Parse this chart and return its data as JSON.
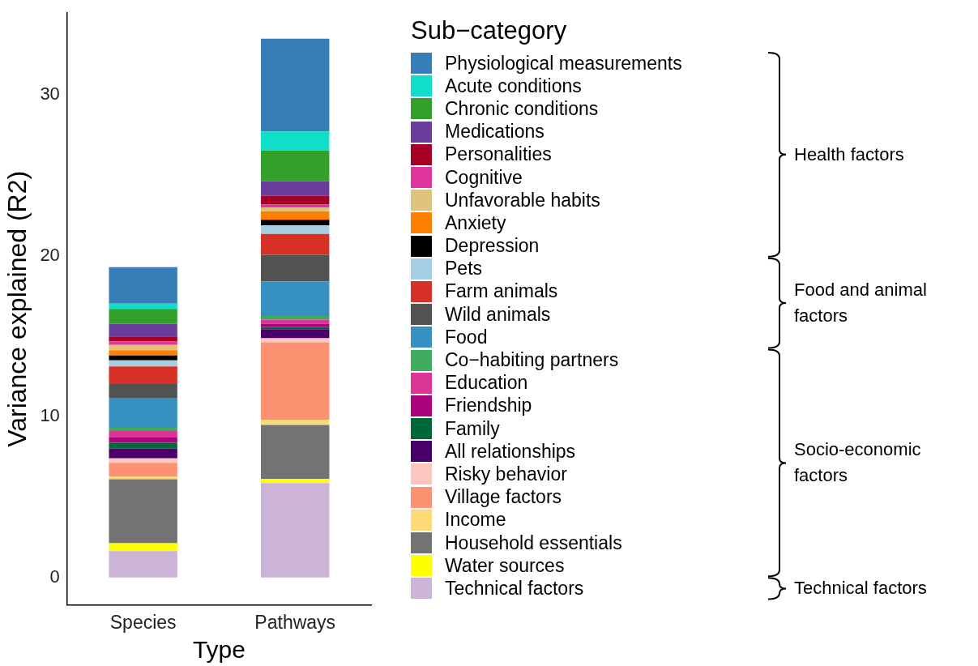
{
  "chart_data": {
    "type": "bar",
    "stacked": true,
    "xlabel": "Type",
    "ylabel": "Variance explained (R2)",
    "legend_title": "Sub−category",
    "legend": "right",
    "grid": false,
    "categories": [
      "Species",
      "Pathways"
    ],
    "ylim": [
      -1.7,
      35.1
    ],
    "yticks": [
      0,
      10,
      20,
      30
    ],
    "series": [
      {
        "name": "Technical factors",
        "color": "#cbb4d6",
        "values": [
          1.63,
          5.87
        ]
      },
      {
        "name": "Water sources",
        "color": "#ffff00",
        "values": [
          0.49,
          0.25
        ]
      },
      {
        "name": "Household essentials",
        "color": "#737373",
        "values": [
          3.99,
          3.36
        ]
      },
      {
        "name": "Income",
        "color": "#fed976",
        "values": [
          0.15,
          0.33
        ]
      },
      {
        "name": "Village factors",
        "color": "#fc9272",
        "values": [
          0.87,
          4.81
        ]
      },
      {
        "name": "Risky behavior",
        "color": "#fcc5c0",
        "values": [
          0.28,
          0.25
        ]
      },
      {
        "name": "All relationships",
        "color": "#49006a",
        "values": [
          0.61,
          0.57
        ]
      },
      {
        "name": "Family",
        "color": "#006837",
        "values": [
          0.35,
          0.13
        ]
      },
      {
        "name": "Friendship",
        "color": "#ae017e",
        "values": [
          0.33,
          0.21
        ]
      },
      {
        "name": "Education",
        "color": "#dd3497",
        "values": [
          0.4,
          0.25
        ]
      },
      {
        "name": "Co−habiting partners",
        "color": "#41ab5d",
        "values": [
          0.21,
          0.23
        ]
      },
      {
        "name": "Food",
        "color": "#3690c0",
        "values": [
          1.86,
          2.16
        ]
      },
      {
        "name": "Wild animals",
        "color": "#525252",
        "values": [
          0.86,
          1.65
        ]
      },
      {
        "name": "Farm animals",
        "color": "#d73027",
        "values": [
          1.09,
          1.29
        ]
      },
      {
        "name": "Pets",
        "color": "#a6cee3",
        "values": [
          0.38,
          0.53
        ]
      },
      {
        "name": "Depression",
        "color": "#000000",
        "values": [
          0.3,
          0.36
        ]
      },
      {
        "name": "Anxiety",
        "color": "#ff7f00",
        "values": [
          0.33,
          0.51
        ]
      },
      {
        "name": "Unfavorable habits",
        "color": "#dfc27d",
        "values": [
          0.33,
          0.25
        ]
      },
      {
        "name": "Cognitive",
        "color": "#e0359a",
        "values": [
          0.22,
          0.18
        ]
      },
      {
        "name": "Personalities",
        "color": "#a50026",
        "values": [
          0.31,
          0.56
        ]
      },
      {
        "name": "Medications",
        "color": "#6a3d9a",
        "values": [
          0.79,
          0.89
        ]
      },
      {
        "name": "Chronic conditions",
        "color": "#33a02c",
        "values": [
          0.92,
          1.91
        ]
      },
      {
        "name": "Acute conditions",
        "color": "#0fdfc8",
        "values": [
          0.33,
          1.19
        ]
      },
      {
        "name": "Physiological measurements",
        "color": "#377eb8",
        "values": [
          2.27,
          5.77
        ]
      }
    ],
    "annotations": [
      "Health factors",
      "Food and animal factors",
      "Socio-economic factors",
      "Technical factors"
    ]
  }
}
